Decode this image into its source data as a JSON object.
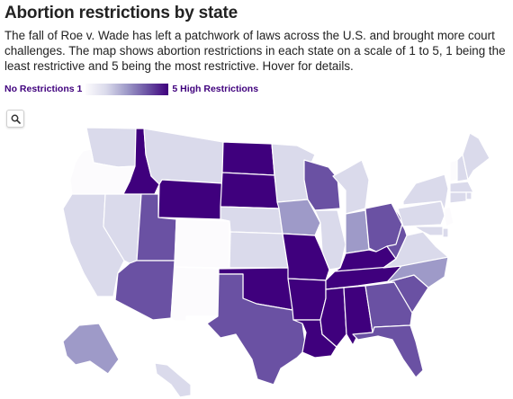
{
  "header": {
    "title": "Abortion restrictions by state",
    "subtitle": "The fall of Roe v. Wade has left a patchwork of laws across the U.S. and brought more court challenges. The map shows abortion restrictions in each state on a scale of 1 to 5, 1 being the least restrictive and 5 being the most restrictive. Hover for details."
  },
  "legend": {
    "low_label": "No Restrictions 1",
    "high_label": "5 High Restrictions",
    "scale_min": 1,
    "scale_max": 5,
    "colors": [
      "#fcfbfd",
      "#dadaeb",
      "#9e9ac8",
      "#6a51a3",
      "#3f007d"
    ]
  },
  "controls": {
    "search_icon": "search-icon"
  },
  "map_data": {
    "type": "choropleth",
    "region": "United States",
    "variable": "abortion restriction level (1-5)",
    "states": {
      "WA": 2,
      "OR": 1,
      "CA": 2,
      "NV": 2,
      "ID": 5,
      "MT": 2,
      "WY": 5,
      "UT": 4,
      "AZ": 4,
      "CO": 1,
      "NM": 1,
      "ND": 5,
      "SD": 5,
      "NE": 2,
      "KS": 2,
      "OK": 5,
      "TX": 4,
      "MN": 2,
      "IA": 3,
      "MO": 5,
      "AR": 5,
      "LA": 5,
      "WI": 4,
      "IL": 2,
      "MI": 2,
      "IN": 3,
      "OH": 4,
      "KY": 5,
      "TN": 5,
      "MS": 5,
      "AL": 5,
      "GA": 4,
      "FL": 4,
      "SC": 4,
      "NC": 3,
      "VA": 2,
      "WV": 4,
      "PA": 2,
      "NY": 2,
      "VT": 1,
      "NH": 2,
      "ME": 2,
      "MA": 2,
      "RI": 2,
      "CT": 2,
      "NJ": 1,
      "DE": 2,
      "MD": 2,
      "AK": 3,
      "HI": 2
    }
  }
}
